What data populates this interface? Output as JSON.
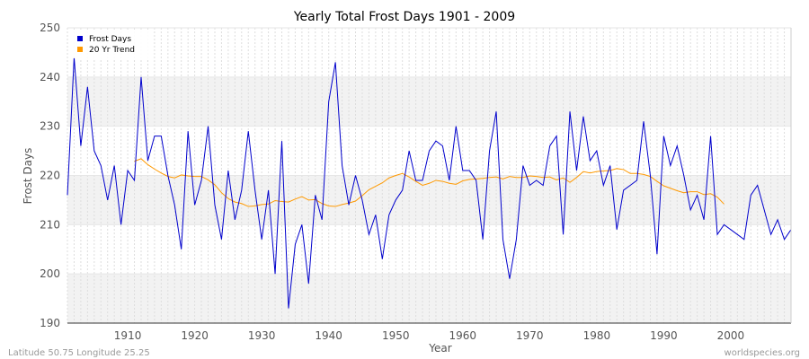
{
  "chart_data": {
    "type": "line",
    "title": "Yearly Total Frost Days 1901 - 2009",
    "xlabel": "Year",
    "ylabel": "Frost Days",
    "xlim": [
      1901,
      2009
    ],
    "ylim": [
      190,
      250
    ],
    "x_ticks": [
      1910,
      1920,
      1930,
      1940,
      1950,
      1960,
      1970,
      1980,
      1990,
      2000
    ],
    "y_ticks": [
      190,
      200,
      210,
      220,
      230,
      240,
      250
    ],
    "grid": true,
    "legend_position": "top-left",
    "series": [
      {
        "name": "Frost Days",
        "color": "#0000cc",
        "x": [
          1901,
          1902,
          1903,
          1904,
          1905,
          1906,
          1907,
          1908,
          1909,
          1910,
          1911,
          1912,
          1913,
          1914,
          1915,
          1916,
          1917,
          1918,
          1919,
          1920,
          1921,
          1922,
          1923,
          1924,
          1925,
          1926,
          1927,
          1928,
          1929,
          1930,
          1931,
          1932,
          1933,
          1934,
          1935,
          1936,
          1937,
          1938,
          1939,
          1940,
          1941,
          1942,
          1943,
          1944,
          1945,
          1946,
          1947,
          1948,
          1949,
          1950,
          1951,
          1952,
          1953,
          1954,
          1955,
          1956,
          1957,
          1958,
          1959,
          1960,
          1961,
          1962,
          1963,
          1964,
          1965,
          1966,
          1967,
          1968,
          1969,
          1970,
          1971,
          1972,
          1973,
          1974,
          1975,
          1976,
          1977,
          1978,
          1979,
          1980,
          1981,
          1982,
          1983,
          1984,
          1985,
          1986,
          1987,
          1988,
          1989,
          1990,
          1991,
          1992,
          1993,
          1994,
          1995,
          1996,
          1997,
          1998,
          1999,
          2000,
          2001,
          2002,
          2003,
          2004,
          2005,
          2006,
          2007,
          2008,
          2009
        ],
        "values": [
          216,
          244,
          226,
          238,
          225,
          222,
          215,
          222,
          210,
          221,
          219,
          240,
          223,
          228,
          228,
          220,
          214,
          205,
          229,
          214,
          219,
          230,
          214,
          207,
          221,
          211,
          217,
          229,
          217,
          207,
          217,
          200,
          227,
          193,
          206,
          210,
          198,
          216,
          211,
          235,
          243,
          222,
          214,
          220,
          215,
          208,
          212,
          203,
          212,
          215,
          217,
          225,
          219,
          219,
          225,
          227,
          226,
          219,
          230,
          221,
          221,
          219,
          207,
          225,
          233,
          207,
          199,
          207,
          222,
          218,
          219,
          218,
          226,
          228,
          208,
          233,
          221,
          232,
          223,
          225,
          218,
          222,
          209,
          217,
          218,
          219,
          231,
          220,
          204,
          228,
          222,
          226,
          220,
          213,
          216,
          211,
          228,
          208,
          210,
          209,
          208,
          207,
          216,
          218,
          213,
          208,
          211,
          207,
          209
        ]
      },
      {
        "name": "20 Yr Trend",
        "color": "#ff9900",
        "x": [
          1911,
          1912,
          1913,
          1914,
          1915,
          1916,
          1917,
          1918,
          1919,
          1920,
          1921,
          1922,
          1923,
          1924,
          1925,
          1926,
          1927,
          1928,
          1929,
          1930,
          1931,
          1932,
          1933,
          1934,
          1935,
          1936,
          1937,
          1938,
          1939,
          1940,
          1941,
          1942,
          1943,
          1944,
          1945,
          1946,
          1947,
          1948,
          1949,
          1950,
          1951,
          1952,
          1953,
          1954,
          1955,
          1956,
          1957,
          1958,
          1959,
          1960,
          1961,
          1962,
          1963,
          1964,
          1965,
          1966,
          1967,
          1968,
          1969,
          1970,
          1971,
          1972,
          1973,
          1974,
          1975,
          1976,
          1977,
          1978,
          1979,
          1980,
          1981,
          1982,
          1983,
          1984,
          1985,
          1986,
          1987,
          1988,
          1989,
          1990,
          1991,
          1992,
          1993,
          1994,
          1995,
          1996,
          1997,
          1998,
          1999
        ],
        "values": [
          222.9,
          223.4,
          222.2,
          221.3,
          220.5,
          219.8,
          219.5,
          220.1,
          219.9,
          219.8,
          219.8,
          219.1,
          218.1,
          216.5,
          215.3,
          214.6,
          214.3,
          213.7,
          213.8,
          214.1,
          214.2,
          214.9,
          214.7,
          214.6,
          215.2,
          215.7,
          215.0,
          215.1,
          214.3,
          213.8,
          213.7,
          214.1,
          214.4,
          214.8,
          215.9,
          217.1,
          217.8,
          218.5,
          219.5,
          220.0,
          220.4,
          219.7,
          218.8,
          218.0,
          218.4,
          219.0,
          218.8,
          218.4,
          218.2,
          218.9,
          219.2,
          219.3,
          219.4,
          219.6,
          219.7,
          219.3,
          219.8,
          219.6,
          219.6,
          219.9,
          219.8,
          219.6,
          219.7,
          219.1,
          219.5,
          218.6,
          219.6,
          220.8,
          220.5,
          220.8,
          220.9,
          221.0,
          221.4,
          221.2,
          220.4,
          220.4,
          220.2,
          219.8,
          218.8,
          217.9,
          217.4,
          216.9,
          216.5,
          216.7,
          216.7,
          216.1,
          216.3,
          215.6,
          214.2
        ]
      }
    ]
  },
  "footer": {
    "left": "Latitude 50.75 Longitude 25.25",
    "right": "worldspecies.org"
  }
}
